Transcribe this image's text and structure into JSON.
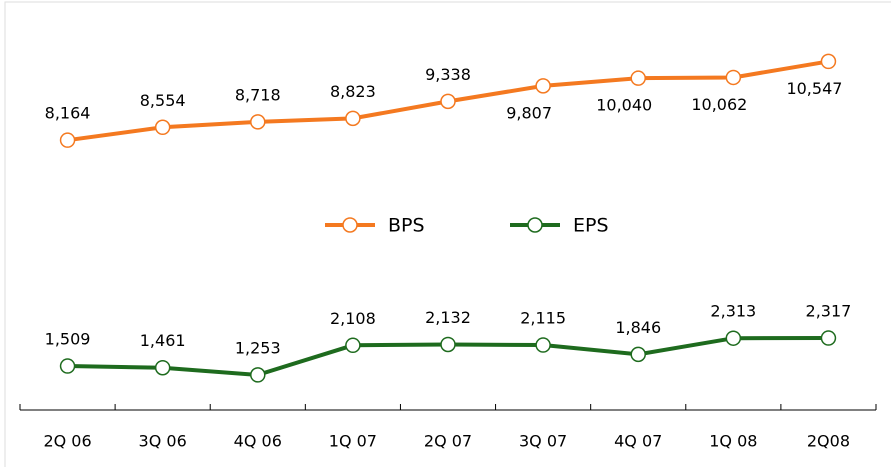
{
  "chart_data": {
    "type": "line",
    "categories": [
      "2Q 06",
      "3Q 06",
      "4Q 06",
      "1Q 07",
      "2Q 07",
      "3Q 07",
      "4Q 07",
      "1Q 08",
      "2Q08"
    ],
    "series": [
      {
        "name": "BPS",
        "color": "#f47920",
        "values": [
          8164,
          8554,
          8718,
          8823,
          9338,
          9807,
          10040,
          10062,
          10547
        ],
        "value_labels": [
          "8,164",
          "8,554",
          "8,718",
          "8,823",
          "9,338",
          "9,807",
          "10,040",
          "10,062",
          "10,547"
        ]
      },
      {
        "name": "EPS",
        "color": "#1e6b1e",
        "axis": "y2",
        "values": [
          1509,
          1461,
          1253,
          2108,
          2132,
          2115,
          1846,
          2313,
          2317
        ],
        "value_labels": [
          "1,509",
          "1,461",
          "1,253",
          "2,108",
          "2,132",
          "2,115",
          "1,846",
          "2,313",
          "2,317"
        ]
      }
    ],
    "ylim": [
      0,
      11800
    ],
    "y2lim": [
      240,
      11500
    ],
    "legend": "center"
  }
}
